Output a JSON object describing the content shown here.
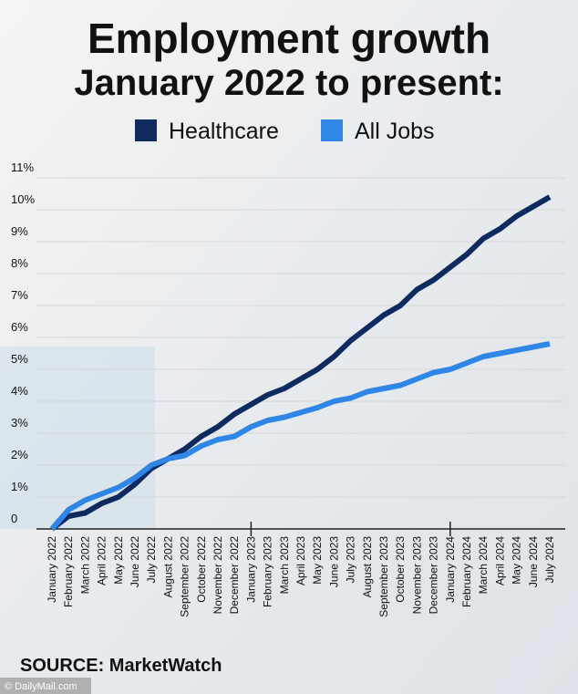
{
  "chart_data": {
    "type": "line",
    "title": "Employment growth",
    "subtitle": "January 2022 to present:",
    "source": "SOURCE: MarketWatch",
    "credit": "© DailyMail.com",
    "categories": [
      "January 2022",
      "February 2022",
      "March 2022",
      "April 2022",
      "May 2022",
      "June 2022",
      "July 2022",
      "August 2022",
      "September 2022",
      "October 2022",
      "November 2022",
      "December 2022",
      "January 2023",
      "February 2023",
      "March 2023",
      "April 2023",
      "May 2023",
      "June 2023",
      "July 2023",
      "August 2023",
      "September 2023",
      "October 2023",
      "November 2023",
      "December 2023",
      "January 2024",
      "February 2024",
      "March 2024",
      "April 2024",
      "May 2024",
      "June 2024",
      "July 2024"
    ],
    "series": [
      {
        "name": "Healthcare",
        "color": "#0d2b5e",
        "values": [
          0,
          0.4,
          0.5,
          0.8,
          1.0,
          1.4,
          1.9,
          2.2,
          2.5,
          2.9,
          3.2,
          3.6,
          3.9,
          4.2,
          4.4,
          4.7,
          5.0,
          5.4,
          5.9,
          6.3,
          6.7,
          7.0,
          7.5,
          7.8,
          8.2,
          8.6,
          9.1,
          9.4,
          9.8,
          10.1,
          10.4
        ]
      },
      {
        "name": "All Jobs",
        "color": "#2f86e6",
        "values": [
          0,
          0.6,
          0.9,
          1.1,
          1.3,
          1.6,
          2.0,
          2.2,
          2.3,
          2.6,
          2.8,
          2.9,
          3.2,
          3.4,
          3.5,
          3.65,
          3.8,
          4.0,
          4.1,
          4.3,
          4.4,
          4.5,
          4.7,
          4.9,
          5.0,
          5.2,
          5.4,
          5.5,
          5.6,
          5.7,
          5.8
        ]
      }
    ],
    "ylim": [
      0,
      11
    ],
    "yticks": [
      0,
      {
        "value": 1,
        "label": "1%"
      },
      {
        "value": 2,
        "label": "2%"
      },
      {
        "value": 3,
        "label": "3%"
      },
      {
        "value": 4,
        "label": "4%"
      },
      {
        "value": 5,
        "label": "5%"
      },
      {
        "value": 6,
        "label": "6%"
      },
      {
        "value": 7,
        "label": "7%"
      },
      {
        "value": 8,
        "label": "8%"
      },
      {
        "value": 9,
        "label": "9%"
      },
      {
        "value": 10,
        "label": "10%"
      },
      {
        "value": 11,
        "label": "11%"
      }
    ],
    "grid": true
  }
}
